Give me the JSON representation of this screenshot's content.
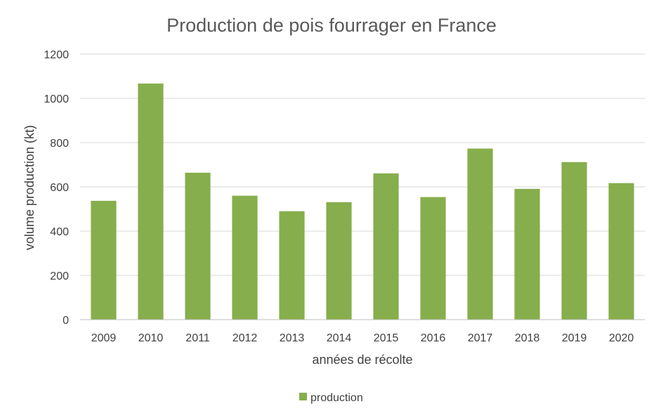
{
  "chart_data": {
    "type": "bar",
    "title": "Production de pois fourrager en France",
    "xlabel": "années de récolte",
    "ylabel": "volume production (kt)",
    "categories": [
      "2009",
      "2010",
      "2011",
      "2012",
      "2013",
      "2014",
      "2015",
      "2016",
      "2017",
      "2018",
      "2019",
      "2020"
    ],
    "series": [
      {
        "name": "production",
        "color": "#86ae4c",
        "values": [
          537,
          1067,
          664,
          560,
          490,
          531,
          661,
          554,
          773,
          591,
          712,
          617
        ]
      }
    ],
    "ylim": [
      0,
      1200
    ],
    "yticks": [
      0,
      200,
      400,
      600,
      800,
      1000,
      1200
    ],
    "grid": true,
    "legend_position": "bottom"
  }
}
